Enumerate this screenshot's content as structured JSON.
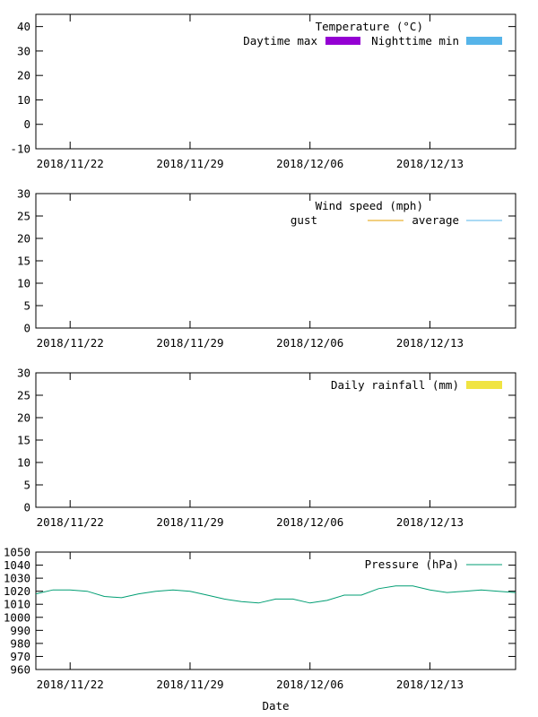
{
  "x_axis": {
    "label": "Date",
    "tick_labels": [
      "2018/11/22",
      "2018/11/29",
      "2018/12/06",
      "2018/12/13"
    ],
    "tick_dates": [
      "2018-11-22",
      "2018-11-29",
      "2018-12-06",
      "2018-12-13"
    ],
    "range": [
      "2018-11-20",
      "2018-12-18"
    ]
  },
  "chart_data": [
    {
      "type": "bar",
      "title": "Temperature (°C)",
      "ylim": [
        -10,
        45
      ],
      "yticks": [
        -10,
        0,
        10,
        20,
        30,
        40
      ],
      "legend": "top-right",
      "grid": false,
      "series": [
        {
          "name": "Daytime max",
          "color": "#9400d3",
          "values": []
        },
        {
          "name": "Nighttime min",
          "color": "#56b4e9",
          "values": []
        }
      ]
    },
    {
      "type": "line",
      "title": "Wind speed (mph)",
      "ylim": [
        0,
        30
      ],
      "yticks": [
        0,
        5,
        10,
        15,
        20,
        25,
        30
      ],
      "legend": "top-right",
      "grid": false,
      "series": [
        {
          "name": "gust",
          "color": "#e69f00",
          "values": []
        },
        {
          "name": "average",
          "color": "#56b4e9",
          "values": []
        }
      ]
    },
    {
      "type": "bar",
      "title": "",
      "ylim": [
        0,
        30
      ],
      "yticks": [
        0,
        5,
        10,
        15,
        20,
        25,
        30
      ],
      "legend": "top-right",
      "grid": false,
      "series": [
        {
          "name": "Daily rainfall (mm)",
          "color": "#f0e442",
          "values": []
        }
      ]
    },
    {
      "type": "line",
      "title": "",
      "xlabel": "Date",
      "ylim": [
        960,
        1050
      ],
      "yticks": [
        960,
        970,
        980,
        990,
        1000,
        1010,
        1020,
        1030,
        1040,
        1050
      ],
      "legend": "top-right",
      "grid": false,
      "series": [
        {
          "name": "Pressure (hPa)",
          "color": "#009e73",
          "x": [
            "2018-11-20",
            "2018-11-21",
            "2018-11-22",
            "2018-11-23",
            "2018-11-24",
            "2018-11-25",
            "2018-11-26",
            "2018-11-27",
            "2018-11-28",
            "2018-11-29",
            "2018-11-30",
            "2018-12-01",
            "2018-12-02",
            "2018-12-03",
            "2018-12-04",
            "2018-12-05",
            "2018-12-06",
            "2018-12-07",
            "2018-12-08",
            "2018-12-09",
            "2018-12-10",
            "2018-12-11",
            "2018-12-12",
            "2018-12-13",
            "2018-12-14",
            "2018-12-15",
            "2018-12-16",
            "2018-12-17",
            "2018-12-18"
          ],
          "values": [
            1018,
            1021,
            1021,
            1020,
            1016,
            1015,
            1018,
            1020,
            1021,
            1020,
            1017,
            1014,
            1012,
            1011,
            1014,
            1014,
            1011,
            1013,
            1017,
            1017,
            1022,
            1024,
            1024,
            1021,
            1019,
            1020,
            1021,
            1020,
            1019
          ]
        }
      ]
    }
  ]
}
